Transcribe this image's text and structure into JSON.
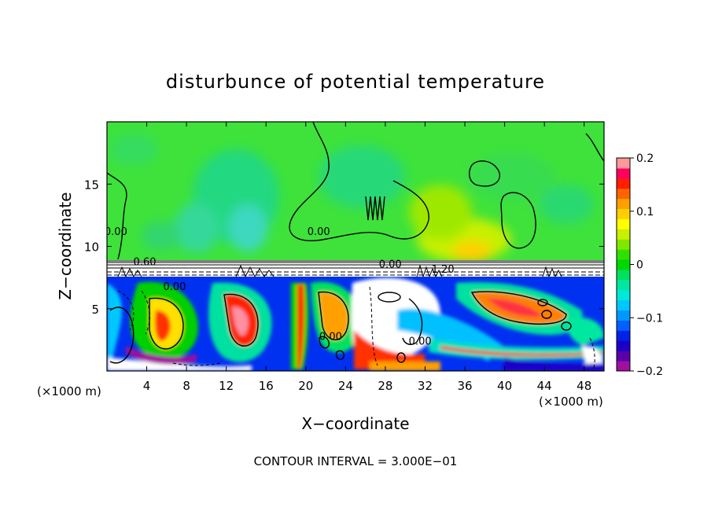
{
  "chart_data": {
    "type": "heatmap",
    "title": "disturbunce of potential temperature",
    "xlabel": "X−coordinate",
    "ylabel": "Z−coordinate",
    "x_unit": "(×1000 m)",
    "x_unit_right": "(×1000 m)",
    "xlim": [
      0,
      50
    ],
    "ylim": [
      0,
      20
    ],
    "xticks": [
      4,
      8,
      12,
      16,
      20,
      24,
      28,
      32,
      36,
      40,
      44,
      48
    ],
    "yticks": [
      5,
      10,
      15
    ],
    "footer": "CONTOUR INTERVAL = 3.000E−01",
    "colorbar": {
      "min": -0.2,
      "max": 0.2,
      "ticks": [
        0.2,
        0.1,
        0,
        -0.1,
        -0.2
      ],
      "tick_labels": [
        "0.2",
        "0.1",
        "0",
        "−0.1",
        "−0.2"
      ],
      "colors": [
        "#a0109e",
        "#5a00a8",
        "#1c00c8",
        "#0022e8",
        "#0060ff",
        "#0098ff",
        "#00c8ff",
        "#00e8d8",
        "#00e8a0",
        "#00e060",
        "#00d800",
        "#30e000",
        "#80e800",
        "#c8f000",
        "#ffff00",
        "#ffd000",
        "#ffa000",
        "#ff6400",
        "#ff1e00",
        "#ff0060",
        "#ff9898"
      ]
    },
    "contour_labels": [
      {
        "text": "0.00",
        "x": 0.9,
        "y": 10.9
      },
      {
        "text": "0.60",
        "x": 3.8,
        "y": 8.5
      },
      {
        "text": "0.00",
        "x": 6.8,
        "y": 6.5
      },
      {
        "text": "0.00",
        "x": 21.3,
        "y": 10.9
      },
      {
        "text": "1.20",
        "x": 33.8,
        "y": 7.9
      },
      {
        "text": "0.00",
        "x": 31.5,
        "y": 2.1
      },
      {
        "text": "0.00",
        "x": 22.5,
        "y": 2.5
      },
      {
        "text": "0.00",
        "x": 28.5,
        "y": 8.3
      }
    ]
  }
}
